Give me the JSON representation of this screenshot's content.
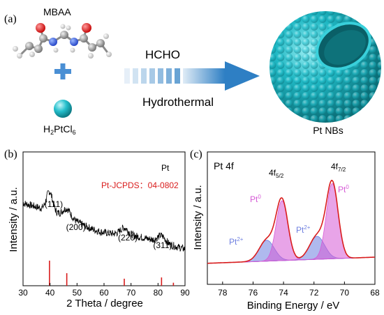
{
  "panel_a": {
    "label": "(a)",
    "mbaa_label": "MBAA",
    "h2ptcl6_label_main": "H",
    "h2ptcl6_sub1": "2",
    "h2ptcl6_mid": "PtCl",
    "h2ptcl6_sub2": "6",
    "arrow_top": "HCHO",
    "arrow_bottom": "Hydrothermal",
    "product_label": "Pt NBs",
    "colors": {
      "sphere": "#1fb8c4",
      "arrow": "#2e7fc4",
      "plus": "#4a8fd4"
    }
  },
  "chart_data": [
    {
      "type": "line",
      "panel_label": "(b)",
      "xlabel": "2 Theta / degree",
      "ylabel": "Intensity / a.u.",
      "xlim": [
        30,
        90
      ],
      "xticks": [
        "30",
        "40",
        "50",
        "60",
        "70",
        "80",
        "90"
      ],
      "legend_title": "Pt",
      "reference_label": "Pt-JCPDS：04-0802",
      "reference_lines": [
        {
          "x": 39.8,
          "h": 1.0
        },
        {
          "x": 46.2,
          "h": 0.5
        },
        {
          "x": 67.5,
          "h": 0.28
        },
        {
          "x": 81.3,
          "h": 0.33
        },
        {
          "x": 85.7,
          "h": 0.12
        }
      ],
      "peak_labels": [
        {
          "text": "(111)",
          "x": 39.8
        },
        {
          "text": "(200)",
          "x": 46.2
        },
        {
          "text": "(220)",
          "x": 67.5
        },
        {
          "text": "(311)",
          "x": 81.3
        }
      ],
      "colors": {
        "trace": "#000000",
        "reference": "#d91c1c"
      }
    },
    {
      "type": "area",
      "panel_label": "(c)",
      "title": "Pt 4f",
      "xlabel": "Binding Energy / eV",
      "ylabel": "Intensity / a.u.",
      "xlim": [
        79,
        68
      ],
      "xticks": [
        "78",
        "76",
        "74",
        "72",
        "70",
        "68"
      ],
      "peaks": [
        {
          "label": "4f",
          "sub": "5/2",
          "x": 74.1
        },
        {
          "label": "4f",
          "sub": "7/2",
          "x": 70.8
        }
      ],
      "species": [
        {
          "label": "Pt",
          "sup": "0",
          "x": 74.1,
          "color": "#d65ad6"
        },
        {
          "label": "Pt",
          "sup": "0",
          "x": 70.8,
          "color": "#d65ad6"
        },
        {
          "label": "Pt",
          "sup": "2+",
          "x": 75.1,
          "color": "#6e7fe0"
        },
        {
          "label": "Pt",
          "sup": "2+",
          "x": 71.8,
          "color": "#6e7fe0"
        }
      ],
      "colors": {
        "envelope": "#d91c1c",
        "pt0": "#d65ad6",
        "pt2": "#6e7fe0"
      }
    }
  ]
}
